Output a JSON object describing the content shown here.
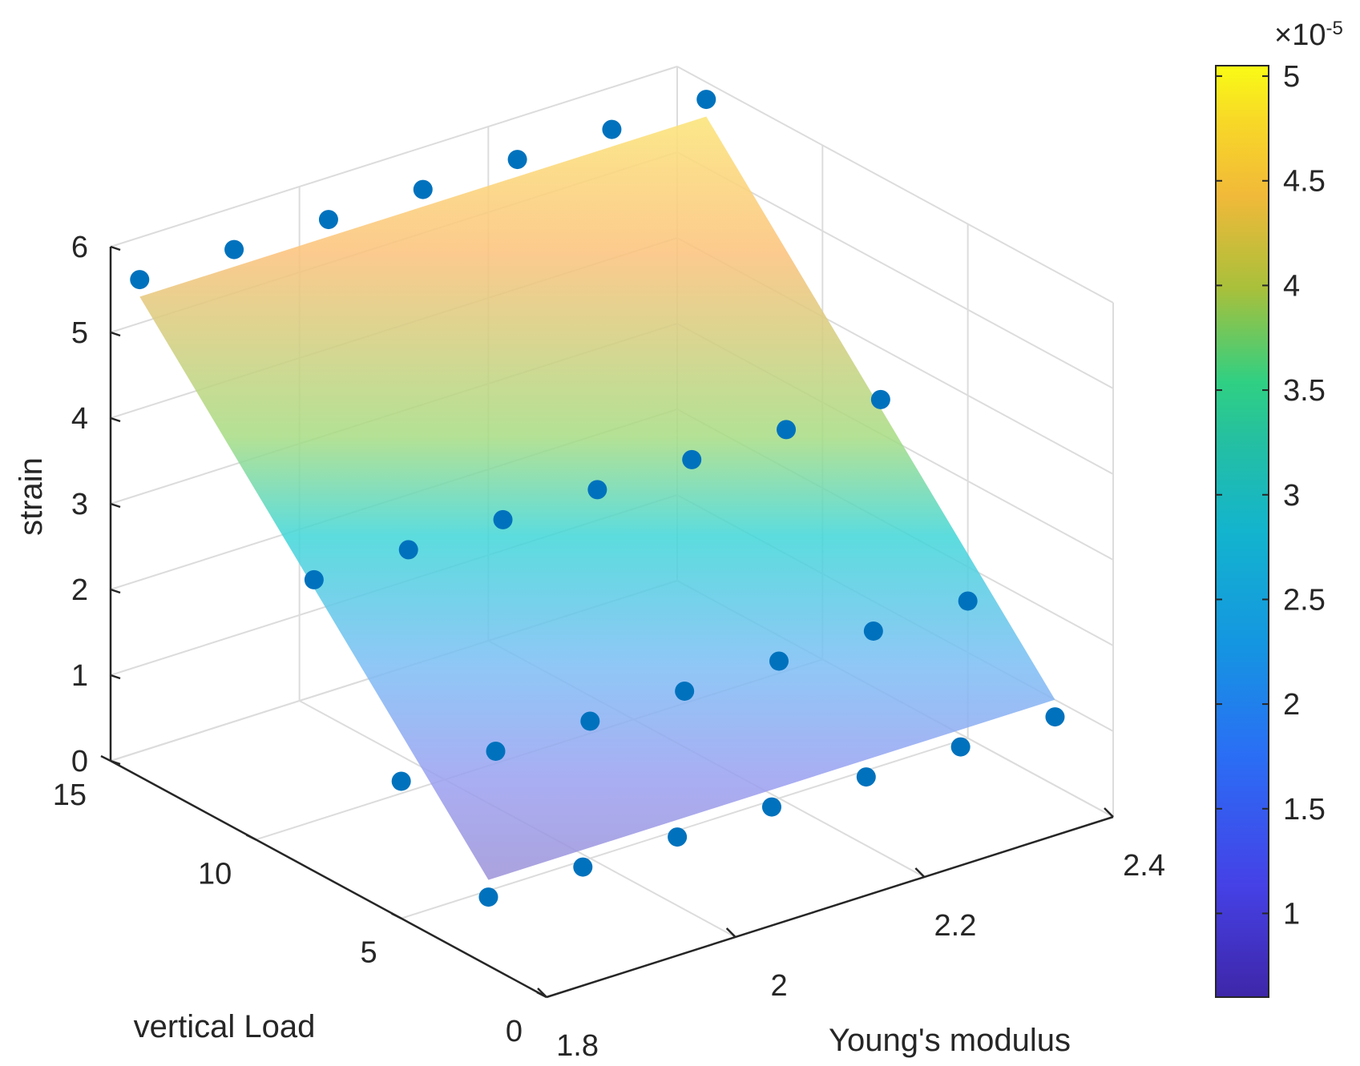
{
  "chart_data": {
    "type": "surface3d",
    "title": "",
    "xlabel": "Young's modulus",
    "ylabel": "vertical Load",
    "zlabel": "strain",
    "xlim": [
      1.8,
      2.4
    ],
    "ylim": [
      0,
      15
    ],
    "zlim": [
      0,
      6
    ],
    "x_ticks": [
      1.8,
      2,
      2.2,
      2.4
    ],
    "y_ticks": [
      0,
      5,
      10,
      15
    ],
    "z_ticks": [
      0,
      1,
      2,
      3,
      4,
      5,
      6
    ],
    "x_tick_labels": [
      "1.8",
      "2",
      "2.2",
      "2.4"
    ],
    "y_tick_labels": [
      "0",
      "5",
      "10",
      "15"
    ],
    "z_tick_labels": [
      "0",
      "1",
      "2",
      "3",
      "4",
      "5",
      "6"
    ],
    "surface": {
      "x": [
        1.8,
        2.4
      ],
      "y": [
        2,
        14
      ],
      "z": [
        [
          1.0,
          1.0
        ],
        [
          5.6,
          5.6
        ]
      ]
    },
    "scatter": {
      "points": [
        {
          "x": 1.8,
          "y": 14,
          "z": 5.8
        },
        {
          "x": 1.9,
          "y": 14,
          "z": 5.8
        },
        {
          "x": 2.0,
          "y": 14,
          "z": 5.8
        },
        {
          "x": 2.1,
          "y": 14,
          "z": 5.8
        },
        {
          "x": 2.2,
          "y": 14,
          "z": 5.8
        },
        {
          "x": 2.3,
          "y": 14,
          "z": 5.8
        },
        {
          "x": 2.4,
          "y": 14,
          "z": 5.8
        },
        {
          "x": 1.8,
          "y": 8,
          "z": 3.4
        },
        {
          "x": 1.9,
          "y": 8,
          "z": 3.4
        },
        {
          "x": 2.0,
          "y": 8,
          "z": 3.4
        },
        {
          "x": 2.1,
          "y": 8,
          "z": 3.4
        },
        {
          "x": 2.2,
          "y": 8,
          "z": 3.4
        },
        {
          "x": 2.3,
          "y": 8,
          "z": 3.4
        },
        {
          "x": 2.4,
          "y": 8,
          "z": 3.4
        },
        {
          "x": 1.8,
          "y": 5,
          "z": 1.6
        },
        {
          "x": 1.9,
          "y": 5,
          "z": 1.6
        },
        {
          "x": 2.0,
          "y": 5,
          "z": 1.6
        },
        {
          "x": 2.1,
          "y": 5,
          "z": 1.6
        },
        {
          "x": 2.2,
          "y": 5,
          "z": 1.6
        },
        {
          "x": 2.3,
          "y": 5,
          "z": 1.6
        },
        {
          "x": 2.4,
          "y": 5,
          "z": 1.6
        },
        {
          "x": 1.8,
          "y": 2,
          "z": 0.8
        },
        {
          "x": 1.9,
          "y": 2,
          "z": 0.8
        },
        {
          "x": 2.0,
          "y": 2,
          "z": 0.8
        },
        {
          "x": 2.1,
          "y": 2,
          "z": 0.8
        },
        {
          "x": 2.2,
          "y": 2,
          "z": 0.8
        },
        {
          "x": 2.3,
          "y": 2,
          "z": 0.8
        },
        {
          "x": 2.4,
          "y": 2,
          "z": 0.8
        }
      ],
      "color": "#0072BD"
    },
    "colorbar": {
      "limits": [
        0.6,
        5.05
      ],
      "ticks": [
        "1",
        "1.5",
        "2",
        "2.5",
        "3",
        "3.5",
        "4",
        "4.5",
        "5"
      ],
      "tick_values": [
        1,
        1.5,
        2,
        2.5,
        3,
        3.5,
        4,
        4.5,
        5
      ],
      "exponent_base": "×10",
      "exponent_power": "-5",
      "colormap": "parula"
    }
  }
}
